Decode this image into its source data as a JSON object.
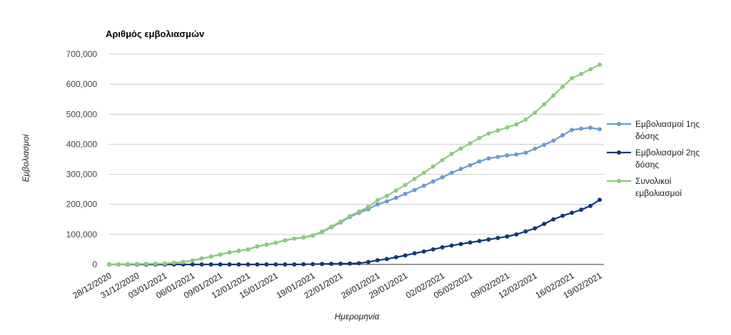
{
  "chart_data": {
    "type": "line",
    "title": "Αριθμός εμβολιασμών",
    "xlabel": "Ημερομηνία",
    "ylabel": "Εμβολιασμοί",
    "ylim": [
      0,
      700000
    ],
    "yticks": [
      0,
      100000,
      200000,
      300000,
      400000,
      500000,
      600000,
      700000
    ],
    "ytick_labels": [
      "0",
      "100,000",
      "200,000",
      "300,000",
      "400,000",
      "500,000",
      "600,000",
      "700,000"
    ],
    "x": [
      "28/12/2020",
      "29/12/2020",
      "30/12/2020",
      "31/12/2020",
      "01/01/2021",
      "02/01/2021",
      "03/01/2021",
      "04/01/2021",
      "05/01/2021",
      "06/01/2021",
      "07/01/2021",
      "08/01/2021",
      "09/01/2021",
      "10/01/2021",
      "11/01/2021",
      "12/01/2021",
      "13/01/2021",
      "14/01/2021",
      "15/01/2021",
      "16/01/2021",
      "17/01/2021",
      "18/01/2021",
      "19/01/2021",
      "20/01/2021",
      "21/01/2021",
      "22/01/2021",
      "23/01/2021",
      "24/01/2021",
      "25/01/2021",
      "26/01/2021",
      "27/01/2021",
      "28/01/2021",
      "29/01/2021",
      "30/01/2021",
      "31/01/2021",
      "01/02/2021",
      "02/02/2021",
      "03/02/2021",
      "04/02/2021",
      "05/02/2021",
      "06/02/2021",
      "07/02/2021",
      "08/02/2021",
      "09/02/2021",
      "10/02/2021",
      "11/02/2021",
      "12/02/2021",
      "13/02/2021",
      "14/02/2021",
      "15/02/2021",
      "16/02/2021",
      "17/02/2021",
      "18/02/2021",
      "19/02/2021"
    ],
    "x_tick_labels": [
      "28/12/2020",
      "31/12/2020",
      "03/01/2021",
      "06/01/2021",
      "09/01/2021",
      "12/01/2021",
      "15/01/2021",
      "19/01/2021",
      "22/01/2021",
      "26/01/2021",
      "29/01/2021",
      "02/02/2021",
      "05/02/2021",
      "09/02/2021",
      "12/02/2021",
      "16/02/2021",
      "19/02/2021"
    ],
    "grid": true,
    "legend_position": "right",
    "series": [
      {
        "name": "Εμβολιασμοί 1ης δόσης",
        "color": "#6c9bd1",
        "values": [
          0,
          0,
          800,
          1500,
          2000,
          2500,
          3000,
          5500,
          8000,
          13000,
          20000,
          26000,
          33000,
          40000,
          45000,
          50000,
          60000,
          66000,
          72000,
          80000,
          86000,
          90000,
          96000,
          108000,
          124000,
          140000,
          158000,
          172000,
          184000,
          200000,
          210000,
          222000,
          235000,
          248000,
          262000,
          276000,
          290000,
          305000,
          318000,
          330000,
          343000,
          353000,
          358000,
          363000,
          366000,
          372000,
          385000,
          398000,
          412000,
          430000,
          448000,
          452000,
          455000,
          450000
        ]
      },
      {
        "name": "Εμβολιασμοί 2ης δόσης",
        "color": "#123a73",
        "values": [
          0,
          0,
          0,
          0,
          0,
          0,
          0,
          0,
          0,
          0,
          0,
          0,
          0,
          0,
          0,
          0,
          0,
          0,
          0,
          0,
          0,
          500,
          1000,
          1500,
          2000,
          2500,
          3000,
          4000,
          8000,
          14000,
          18000,
          24000,
          30000,
          37000,
          43000,
          50000,
          57000,
          63000,
          68000,
          73000,
          78000,
          83000,
          88000,
          93000,
          100000,
          110000,
          120000,
          135000,
          150000,
          162000,
          172000,
          182000,
          195000,
          215000
        ]
      },
      {
        "name": "Συνολικοί εμβολιασμοί",
        "color": "#8ccc7a",
        "values": [
          0,
          0,
          800,
          1500,
          2000,
          2500,
          3000,
          5500,
          8000,
          13000,
          20000,
          26000,
          33000,
          40000,
          45000,
          50000,
          60000,
          66000,
          72000,
          80000,
          86000,
          90500,
          97000,
          109500,
          126000,
          142500,
          161000,
          176000,
          192000,
          214000,
          228000,
          246000,
          265000,
          285000,
          305000,
          326000,
          347000,
          368000,
          386000,
          403000,
          421000,
          436000,
          446000,
          456000,
          466000,
          482000,
          505000,
          533000,
          562000,
          592000,
          620000,
          634000,
          650000,
          665000
        ]
      }
    ]
  }
}
